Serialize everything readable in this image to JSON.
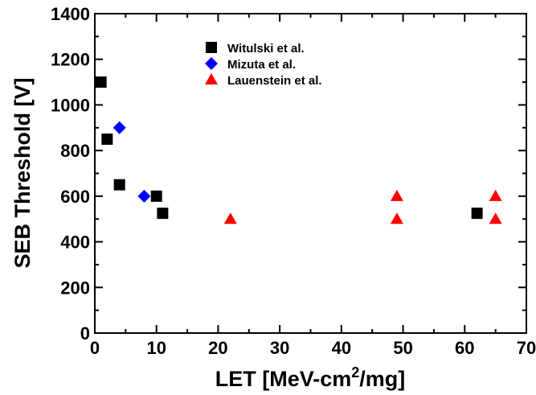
{
  "chart_data": {
    "type": "scatter",
    "xlabel": {
      "pre": "LET [MeV-cm",
      "sup": "2",
      "post": "/mg]"
    },
    "ylabel": "SEB Threshold [V]",
    "xlim": [
      0,
      70
    ],
    "ylim": [
      0,
      1400
    ],
    "x_ticks": [
      0,
      10,
      20,
      30,
      40,
      50,
      60,
      70
    ],
    "y_ticks": [
      0,
      200,
      400,
      600,
      800,
      1000,
      1200,
      1400
    ],
    "grid": false,
    "legend_position": "top-center",
    "series": [
      {
        "name": "Witulski et al.",
        "marker": "square",
        "color": "#000000",
        "points": [
          [
            1,
            1100
          ],
          [
            2,
            850
          ],
          [
            4,
            650
          ],
          [
            10,
            600
          ],
          [
            11,
            525
          ],
          [
            62,
            525
          ]
        ]
      },
      {
        "name": "Mizuta et al.",
        "marker": "diamond",
        "color": "#0000ff",
        "points": [
          [
            4,
            900
          ],
          [
            8,
            600
          ]
        ]
      },
      {
        "name": "Lauenstein et al.",
        "marker": "triangle",
        "color": "#ff0000",
        "points": [
          [
            22,
            500
          ],
          [
            49,
            600
          ],
          [
            49,
            500
          ],
          [
            65,
            600
          ],
          [
            65,
            500
          ]
        ]
      }
    ]
  }
}
